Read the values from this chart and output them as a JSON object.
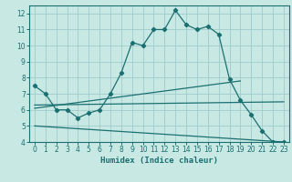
{
  "xlabel": "Humidex (Indice chaleur)",
  "xlim": [
    -0.5,
    23.5
  ],
  "ylim": [
    4,
    12.5
  ],
  "yticks": [
    4,
    5,
    6,
    7,
    8,
    9,
    10,
    11,
    12
  ],
  "xticks": [
    0,
    1,
    2,
    3,
    4,
    5,
    6,
    7,
    8,
    9,
    10,
    11,
    12,
    13,
    14,
    15,
    16,
    17,
    18,
    19,
    20,
    21,
    22,
    23
  ],
  "background_color": "#c8e8e4",
  "grid_color": "#a0cccc",
  "line_color": "#1a7070",
  "line1_x": [
    0,
    1,
    2,
    3,
    4,
    5,
    6,
    7,
    8,
    9,
    10,
    11,
    12,
    13,
    14,
    15,
    16,
    17,
    18,
    19,
    20,
    21,
    22,
    23
  ],
  "line1_y": [
    7.5,
    7.0,
    6.0,
    6.0,
    5.5,
    5.8,
    6.0,
    7.0,
    8.3,
    10.2,
    10.0,
    11.0,
    11.0,
    12.2,
    11.3,
    11.0,
    11.2,
    10.7,
    7.9,
    6.6,
    5.7,
    4.7,
    4.0,
    4.0
  ],
  "line2_x": [
    0,
    19
  ],
  "line2_y": [
    6.1,
    7.8
  ],
  "line3_x": [
    0,
    23
  ],
  "line3_y": [
    6.3,
    6.5
  ],
  "line4_x": [
    0,
    23
  ],
  "line4_y": [
    5.0,
    4.0
  ]
}
